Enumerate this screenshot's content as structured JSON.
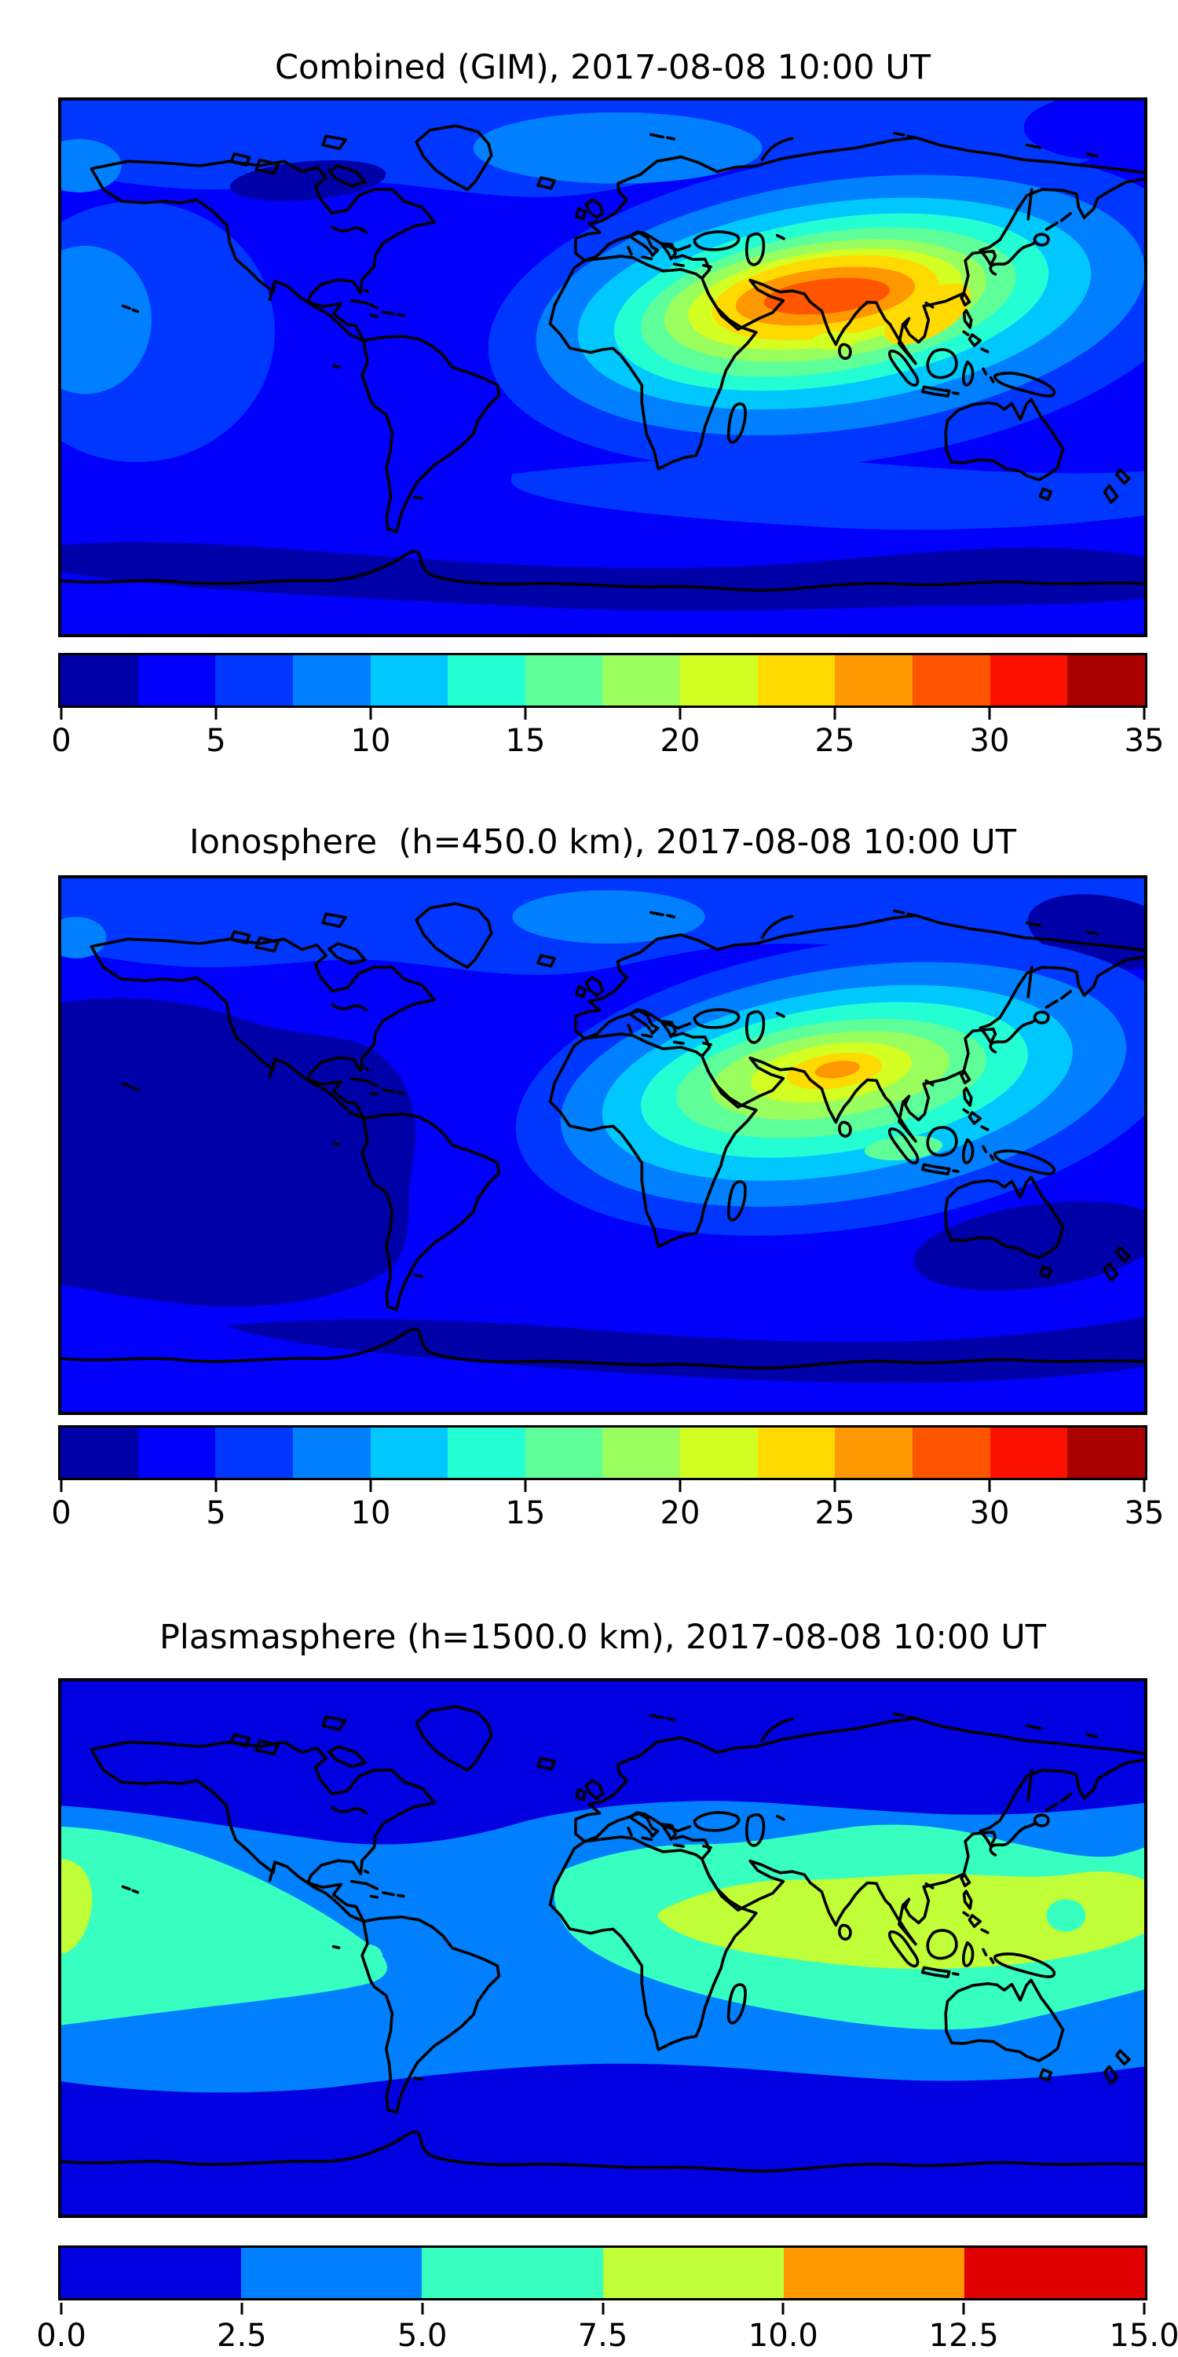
{
  "figure": {
    "background": "#ffffff",
    "text_color": "#000000",
    "coastline_color": "#000000"
  },
  "panels": [
    {
      "id": "combined",
      "title": "Combined (GIM), 2017-08-08 10:00 UT",
      "colorbar": {
        "vmin": 0,
        "vmax": 35,
        "level_step": 2.5,
        "n_segments": 14,
        "ticks": [
          "0",
          "5",
          "10",
          "15",
          "20",
          "25",
          "30",
          "35"
        ],
        "colors": [
          "#0000a9",
          "#0000fb",
          "#0037ff",
          "#0080ff",
          "#00c8ff",
          "#23ffd3",
          "#5eff99",
          "#99ff5e",
          "#d3ff23",
          "#ffda00",
          "#ff9700",
          "#ff5400",
          "#fc1000",
          "#a90000"
        ]
      }
    },
    {
      "id": "ionosphere",
      "title": "Ionosphere  (h=450.0 km), 2017-08-08 10:00 UT",
      "colorbar": {
        "vmin": 0,
        "vmax": 35,
        "level_step": 2.5,
        "n_segments": 14,
        "ticks": [
          "0",
          "5",
          "10",
          "15",
          "20",
          "25",
          "30",
          "35"
        ],
        "colors": [
          "#0000a9",
          "#0000fb",
          "#0037ff",
          "#0080ff",
          "#00c8ff",
          "#23ffd3",
          "#5eff99",
          "#99ff5e",
          "#d3ff23",
          "#ffda00",
          "#ff9700",
          "#ff5400",
          "#fc1000",
          "#a90000"
        ]
      }
    },
    {
      "id": "plasmasphere",
      "title": "Plasmasphere (h=1500.0 km), 2017-08-08 10:00 UT",
      "colorbar": {
        "vmin": 0,
        "vmax": 15,
        "level_step": 2.5,
        "n_segments": 6,
        "ticks": [
          "0.0",
          "2.5",
          "5.0",
          "7.5",
          "10.0",
          "12.5",
          "15.0"
        ],
        "colors": [
          "#0000e0",
          "#0080ff",
          "#37ffc0",
          "#c0ff37",
          "#ff9700",
          "#e00000"
        ]
      }
    }
  ],
  "chart_data": [
    {
      "type": "heatmap",
      "subtype": "filled-contour-world-map",
      "title": "Combined (GIM), 2017-08-08 10:00 UT",
      "projection": "equirectangular",
      "lon_range": [
        -180,
        180
      ],
      "lat_range": [
        -90,
        90
      ],
      "colormap": "jet",
      "contour_levels": [
        0,
        2.5,
        5,
        7.5,
        10,
        12.5,
        15,
        17.5,
        20,
        22.5,
        25,
        27.5,
        30,
        32.5,
        35
      ],
      "colorbar_ticks": [
        0,
        5,
        10,
        15,
        20,
        25,
        30,
        35
      ],
      "legend_position": "bottom-horizontal",
      "grid": false,
      "features": [
        {
          "name": "equatorial-anomaly-peak",
          "approx_center_lon_deg": 72,
          "approx_center_lat_deg": 24,
          "peak_value_band": "27.5-30",
          "shape": "east-west elongated concentric contours from Africa to the western Pacific"
        },
        {
          "name": "secondary-local-dip-south-of-india",
          "approx_center_lon_deg": 78,
          "approx_center_lat_deg": 6,
          "value_band": "20-22.5"
        },
        {
          "name": "southeast-asia-lobe",
          "approx_center_lon_deg": 108,
          "approx_center_lat_deg": 16,
          "value_band": "22.5-25"
        },
        {
          "name": "low-tec-patch-northern-canada",
          "approx_center_lon_deg": -98,
          "approx_center_lat_deg": 62,
          "value_band": "0-2.5"
        },
        {
          "name": "southern-high-latitude-low-band",
          "approx_lat_deg": -62,
          "value_band": "0-2.5"
        },
        {
          "name": "pacific-moderate-region",
          "approx_center_lon_deg": -170,
          "approx_center_lat_deg": 10,
          "value_band": "7.5-10"
        }
      ]
    },
    {
      "type": "heatmap",
      "subtype": "filled-contour-world-map",
      "title": "Ionosphere  (h=450.0 km), 2017-08-08 10:00 UT",
      "projection": "equirectangular",
      "lon_range": [
        -180,
        180
      ],
      "lat_range": [
        -90,
        90
      ],
      "colormap": "jet",
      "contour_levels": [
        0,
        2.5,
        5,
        7.5,
        10,
        12.5,
        15,
        17.5,
        20,
        22.5,
        25,
        27.5,
        30,
        32.5,
        35
      ],
      "colorbar_ticks": [
        0,
        5,
        10,
        15,
        20,
        25,
        30,
        35
      ],
      "legend_position": "bottom-horizontal",
      "grid": false,
      "features": [
        {
          "name": "ionospheric-anomaly-peak",
          "approx_center_lon_deg": 78,
          "approx_center_lat_deg": 25,
          "peak_value_band": "25-27.5",
          "shape": "smaller east-west elongated maximum over northern India"
        },
        {
          "name": "secondary-green-crest-near-sumatra",
          "approx_center_lon_deg": 100,
          "approx_center_lat_deg": -2,
          "value_band": "15-17.5"
        },
        {
          "name": "very-low-tec-region-americas-pacific",
          "approx_center_lon_deg": -110,
          "approx_center_lat_deg": -10,
          "value_band": "0-2.5"
        },
        {
          "name": "southern-high-latitude-low-band",
          "approx_lat_deg": -60,
          "value_band": "0-2.5"
        },
        {
          "name": "northeast-pacific-corner-low",
          "approx_center_lon_deg": 168,
          "approx_center_lat_deg": 70,
          "value_band": "0-2.5"
        }
      ]
    },
    {
      "type": "heatmap",
      "subtype": "filled-contour-world-map",
      "title": "Plasmasphere (h=1500.0 km), 2017-08-08 10:00 UT",
      "projection": "equirectangular",
      "lon_range": [
        -180,
        180
      ],
      "lat_range": [
        -90,
        90
      ],
      "colormap": "jet",
      "contour_levels": [
        0,
        2.5,
        5,
        7.5,
        10,
        12.5,
        15
      ],
      "colorbar_ticks": [
        0.0,
        2.5,
        5.0,
        7.5,
        10.0,
        12.5,
        15.0
      ],
      "legend_position": "bottom-horizontal",
      "grid": false,
      "features": [
        {
          "name": "equatorial-band-maximum",
          "lon_span_deg": [
            20,
            180
          ],
          "approx_lat_span_deg": [
            -10,
            20
          ],
          "value_band": "7.5-10",
          "shape": "continuous yellow-green band from Africa across the Indian Ocean and Indonesia to the date line"
        },
        {
          "name": "west-pacific-edge-maximum",
          "approx_center_lon_deg": -175,
          "approx_center_lat_deg": 15,
          "value_band": "7.5-10"
        },
        {
          "name": "small-dip-inside-band-west-pacific",
          "approx_center_lon_deg": 155,
          "approx_center_lat_deg": 8,
          "value_band": "5-7.5"
        },
        {
          "name": "mid-latitude-band",
          "value_band": "5-7.5",
          "shape": "turquoise belt surrounding the equatorial maximum, pinched near western South America"
        },
        {
          "name": "outer-belt",
          "value_band": "2.5-5",
          "shape": "broad blue belt between roughly 50N and 45S"
        },
        {
          "name": "polar-caps-low",
          "value_band": "0-2.5"
        }
      ]
    }
  ]
}
